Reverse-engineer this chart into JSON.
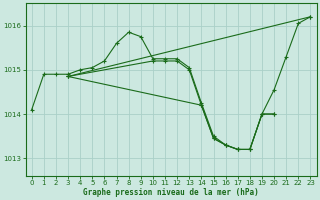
{
  "line_color": "#1a6b1a",
  "bg_color": "#cce8e0",
  "grid_color_major": "#aad0c8",
  "grid_color_minor": "#c0ddd8",
  "xlabel": "Graphe pression niveau de la mer (hPa)",
  "xlabel_color": "#1a6b1a",
  "ylim": [
    1012.6,
    1016.5
  ],
  "xlim": [
    -0.5,
    23.5
  ],
  "yticks": [
    1013,
    1014,
    1015,
    1016
  ],
  "xticks": [
    0,
    1,
    2,
    3,
    4,
    5,
    6,
    7,
    8,
    9,
    10,
    11,
    12,
    13,
    14,
    15,
    16,
    17,
    18,
    19,
    20,
    21,
    22,
    23
  ],
  "series": [
    {
      "x": [
        0,
        1,
        2,
        3,
        4,
        5,
        6,
        7,
        8,
        9,
        10,
        11,
        12,
        13,
        14,
        15,
        16,
        17,
        18,
        19,
        20,
        21,
        22,
        23
      ],
      "y": [
        1014.1,
        1014.9,
        1014.9,
        1014.9,
        1015.0,
        1015.05,
        1015.2,
        1015.6,
        1015.85,
        1015.75,
        1015.25,
        1015.25,
        1015.25,
        1015.05,
        1014.25,
        1013.5,
        1013.3,
        1013.2,
        1013.2,
        1014.0,
        1014.55,
        1015.3,
        1016.05,
        1016.2
      ]
    },
    {
      "x": [
        3,
        23
      ],
      "y": [
        1014.85,
        1016.2
      ]
    },
    {
      "x": [
        3,
        14,
        15,
        16,
        17,
        18,
        19,
        20
      ],
      "y": [
        1014.85,
        1014.2,
        1013.45,
        1013.3,
        1013.2,
        1013.2,
        1014.0,
        1014.0
      ]
    },
    {
      "x": [
        3,
        10,
        11,
        12,
        13,
        14,
        15,
        16,
        17,
        18,
        19,
        20
      ],
      "y": [
        1014.85,
        1015.2,
        1015.2,
        1015.2,
        1015.0,
        1014.2,
        1013.45,
        1013.3,
        1013.2,
        1013.2,
        1014.0,
        1014.0
      ]
    }
  ]
}
